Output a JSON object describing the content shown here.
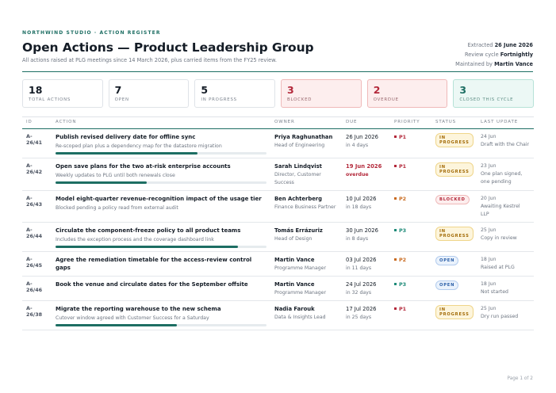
{
  "header": {
    "eyebrow": "NORTHWIND STUDIO · ACTION REGISTER",
    "title": "Open Actions — Product Leadership Group",
    "subtitle": "All actions raised at PLG meetings since 14 March 2026, plus carried items from the FY25 review.",
    "meta": {
      "extracted_label": "Extracted",
      "extracted_value": "26 June 2026",
      "cycle_label": "Review cycle",
      "cycle_value": "Fortnightly",
      "maintained_label": "Maintained by",
      "maintained_value": "Martin Vance"
    }
  },
  "summary": [
    {
      "value": "18",
      "label": "TOTAL ACTIONS",
      "tone": "plain"
    },
    {
      "value": "7",
      "label": "OPEN",
      "tone": "plain"
    },
    {
      "value": "5",
      "label": "IN PROGRESS",
      "tone": "plain"
    },
    {
      "value": "3",
      "label": "BLOCKED",
      "tone": "red"
    },
    {
      "value": "2",
      "label": "OVERDUE",
      "tone": "red"
    },
    {
      "value": "3",
      "label": "CLOSED THIS CYCLE",
      "tone": "green"
    }
  ],
  "table": {
    "columns": [
      "ID",
      "ACTION",
      "OWNER",
      "DUE",
      "PRIORITY",
      "STATUS",
      "LAST UPDATE"
    ],
    "rows": [
      {
        "id": "A-26/41",
        "title": "Publish revised delivery date for offline sync",
        "sub": "Re-scoped plan plus a dependency map for the datastore migration",
        "progress": 0.7,
        "owner": "Priya Raghunathan",
        "role": "Head of Engineering",
        "due": "26 Jun 2026",
        "due_rel": "in 4 days",
        "overdue": false,
        "priority": "P1",
        "status": "IN PROGRESS",
        "status_kind": "prog",
        "upd_date": "24 Jun",
        "upd_note": "Draft with the Chair"
      },
      {
        "id": "A-26/42",
        "title": "Open save plans for the two at-risk enterprise accounts",
        "sub": "Weekly updates to PLG until both renewals close",
        "progress": 0.45,
        "owner": "Sarah Lindqvist",
        "role": "Director, Customer Success",
        "due": "19 Jun 2026",
        "due_rel": "overdue",
        "overdue": true,
        "priority": "P1",
        "status": "IN PROGRESS",
        "status_kind": "prog",
        "upd_date": "23 Jun",
        "upd_note": "One plan signed, one pending"
      },
      {
        "id": "A-26/43",
        "title": "Model eight-quarter revenue-recognition impact of the usage tier",
        "sub": "Blocked pending a policy read from external audit",
        "progress": null,
        "owner": "Ben Achterberg",
        "role": "Finance Business Partner",
        "due": "10 Jul 2026",
        "due_rel": "in 18 days",
        "overdue": false,
        "priority": "P2",
        "status": "BLOCKED",
        "status_kind": "block",
        "upd_date": "20 Jun",
        "upd_note": "Awaiting Kestrel LLP"
      },
      {
        "id": "A-26/44",
        "title": "Circulate the component-freeze policy to all product teams",
        "sub": "Includes the exception process and the coverage dashboard link",
        "progress": 0.9,
        "owner": "Tomás Errázuriz",
        "role": "Head of Design",
        "due": "30 Jun 2026",
        "due_rel": "in 8 days",
        "overdue": false,
        "priority": "P3",
        "status": "IN PROGRESS",
        "status_kind": "prog",
        "upd_date": "25 Jun",
        "upd_note": "Copy in review"
      },
      {
        "id": "A-26/45",
        "title": "Agree the remediation timetable for the access-review control gaps",
        "sub": "",
        "progress": null,
        "owner": "Martin Vance",
        "role": "Programme Manager",
        "due": "03 Jul 2026",
        "due_rel": "in 11 days",
        "overdue": false,
        "priority": "P2",
        "status": "OPEN",
        "status_kind": "open",
        "upd_date": "18 Jun",
        "upd_note": "Raised at PLG"
      },
      {
        "id": "A-26/46",
        "title": "Book the venue and circulate dates for the September offsite",
        "sub": "",
        "progress": null,
        "owner": "Martin Vance",
        "role": "Programme Manager",
        "due": "24 Jul 2026",
        "due_rel": "in 32 days",
        "overdue": false,
        "priority": "P3",
        "status": "OPEN",
        "status_kind": "open",
        "upd_date": "18 Jun",
        "upd_note": "Not started"
      },
      {
        "id": "A-26/38",
        "title": "Migrate the reporting warehouse to the new schema",
        "sub": "Cutover window agreed with Customer Success for a Saturday",
        "progress": 0.6,
        "owner": "Nadia Farouk",
        "role": "Data & Insights Lead",
        "due": "17 Jul 2026",
        "due_rel": "in 25 days",
        "overdue": false,
        "priority": "P1",
        "status": "IN PROGRESS",
        "status_kind": "prog",
        "upd_date": "25 Jun",
        "upd_note": "Dry run passed"
      }
    ]
  },
  "priority_colors": {
    "P1": "#b3283a",
    "P2": "#c96a1e",
    "P3": "#1d8a78"
  },
  "footer": {
    "page": "Page 1 of 2"
  }
}
